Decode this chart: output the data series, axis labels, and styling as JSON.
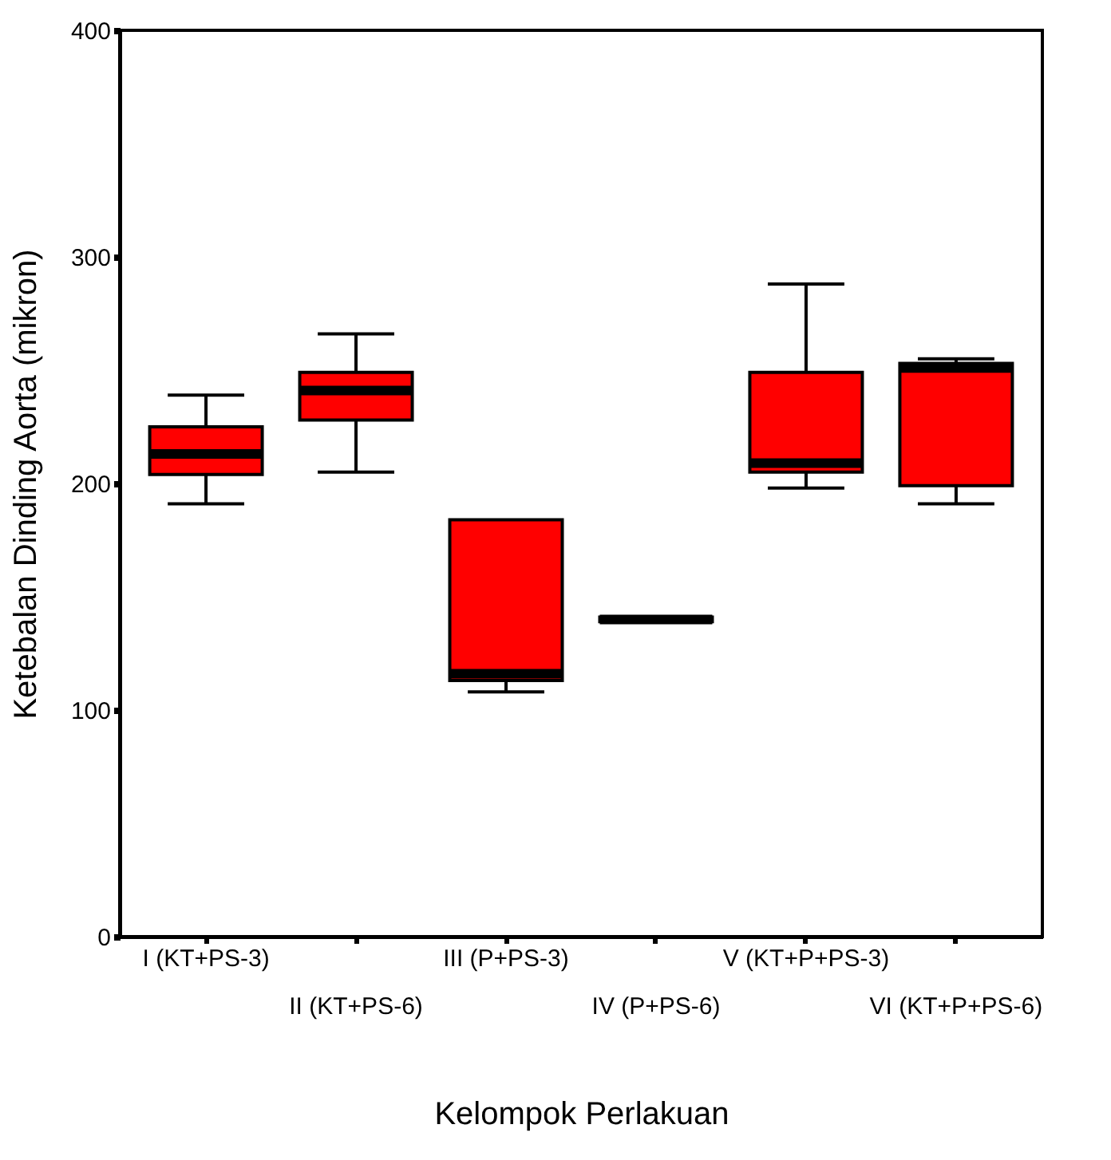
{
  "chart_data": {
    "type": "box",
    "xlabel": "Kelompok Perlakuan",
    "ylabel": "Ketebalan Dinding Aorta (mikron)",
    "categories": [
      "I (KT+PS-3)",
      "II (KT+PS-6)",
      "III (P+PS-3)",
      "IV (P+PS-6)",
      "V (KT+P+PS-3)",
      "VI (KT+P+PS-6)"
    ],
    "ylim": [
      0,
      400
    ],
    "yticks": [
      0,
      100,
      200,
      300,
      400
    ],
    "grid": false,
    "series": [
      {
        "color": "#ff0000",
        "boxes": [
          {
            "low": 191,
            "q1": 204,
            "median": 213,
            "q3": 225,
            "high": 239
          },
          {
            "low": 205,
            "q1": 228,
            "median": 241,
            "q3": 249,
            "high": 266
          },
          {
            "low": 108,
            "q1": 113,
            "median": 116,
            "q3": 184,
            "high": 184
          },
          {
            "low": 139,
            "q1": 139,
            "median": 140,
            "q3": 141,
            "high": 141
          },
          {
            "low": 198,
            "q1": 205,
            "median": 209,
            "q3": 249,
            "high": 288
          },
          {
            "low": 191,
            "q1": 199,
            "median": 251,
            "q3": 253,
            "high": 255
          }
        ]
      }
    ]
  }
}
